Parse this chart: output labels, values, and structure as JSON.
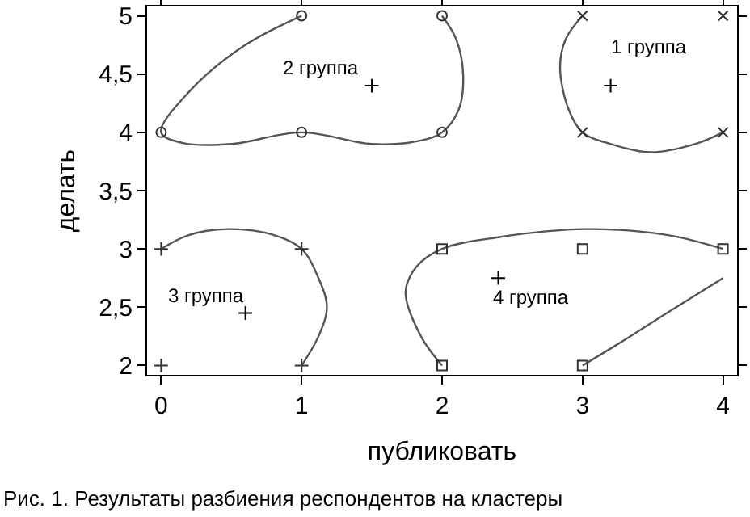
{
  "chart_data": {
    "type": "scatter",
    "xlabel": "публиковать",
    "ylabel": "делать",
    "xlim": [
      -0.1,
      4.1
    ],
    "ylim": [
      1.92,
      5.08
    ],
    "xticks": [
      0,
      1,
      2,
      3,
      4
    ],
    "yticks": [
      2,
      {
        "value": 2.5,
        "label": "2,5"
      },
      3,
      {
        "value": 3.5,
        "label": "3,5"
      },
      4,
      {
        "value": 4.5,
        "label": "4,5"
      },
      5
    ],
    "series": [
      {
        "type": "line",
        "marker": "none",
        "color": "#555555",
        "x": [
          1,
          0.6,
          0.2,
          0,
          0.15,
          0.5,
          1,
          1.5,
          1.85,
          2,
          2.12,
          2.15,
          2.1,
          2
        ],
        "values": [
          5,
          4.75,
          4.35,
          4,
          3.91,
          3.9,
          4,
          3.9,
          3.93,
          4,
          4.2,
          4.5,
          4.8,
          5
        ]
      },
      {
        "type": "line",
        "marker": "none",
        "color": "#555555",
        "x": [
          3,
          2.88,
          2.84,
          2.9,
          3,
          3.2,
          3.48,
          3.8,
          4
        ],
        "values": [
          5,
          4.8,
          4.56,
          4.2,
          4,
          3.9,
          3.83,
          3.9,
          4
        ]
      },
      {
        "type": "line",
        "marker": "none",
        "color": "#555555",
        "x": [
          0,
          0.2,
          0.48,
          0.8,
          1,
          1.12,
          1.18,
          1.12,
          1
        ],
        "values": [
          3,
          3.12,
          3.17,
          3.12,
          3,
          2.75,
          2.5,
          2.25,
          2
        ]
      },
      {
        "type": "line",
        "marker": "none",
        "color": "#555555",
        "x": [
          2,
          1.85,
          1.74,
          1.82,
          2,
          2.4,
          3.02,
          3.6,
          4,
          null,
          4,
          3.6,
          3.3,
          3
        ],
        "values": [
          2,
          2.25,
          2.63,
          2.85,
          3,
          3.1,
          3.17,
          3.12,
          3,
          null,
          2.75,
          2.45,
          2.22,
          2
        ]
      },
      {
        "marker": "circle",
        "color": "#333333",
        "x": [
          0,
          1,
          1,
          2,
          2
        ],
        "values": [
          4,
          4,
          5,
          5,
          4
        ]
      },
      {
        "marker": "cross",
        "color": "#333333",
        "x": [
          3,
          4,
          3,
          4
        ],
        "values": [
          5,
          5,
          4,
          4
        ]
      },
      {
        "marker": "plus",
        "color": "#333333",
        "x": [
          0,
          1,
          0,
          1
        ],
        "values": [
          3,
          3,
          2,
          2
        ]
      },
      {
        "marker": "square",
        "color": "#333333",
        "x": [
          2,
          3,
          4,
          2,
          3
        ],
        "values": [
          3,
          3,
          3,
          2,
          2
        ]
      },
      {
        "marker": "plus",
        "color": "#000000",
        "x": [
          1.5,
          3.2,
          0.6,
          2.4
        ],
        "values": [
          4.4,
          4.4,
          2.45,
          2.75
        ]
      }
    ],
    "annotations": [
      "2 группа",
      "1 группа",
      "3 группа",
      "4 группа",
      "Рис. 1. Результаты разбиения респондентов на кластеры"
    ]
  }
}
